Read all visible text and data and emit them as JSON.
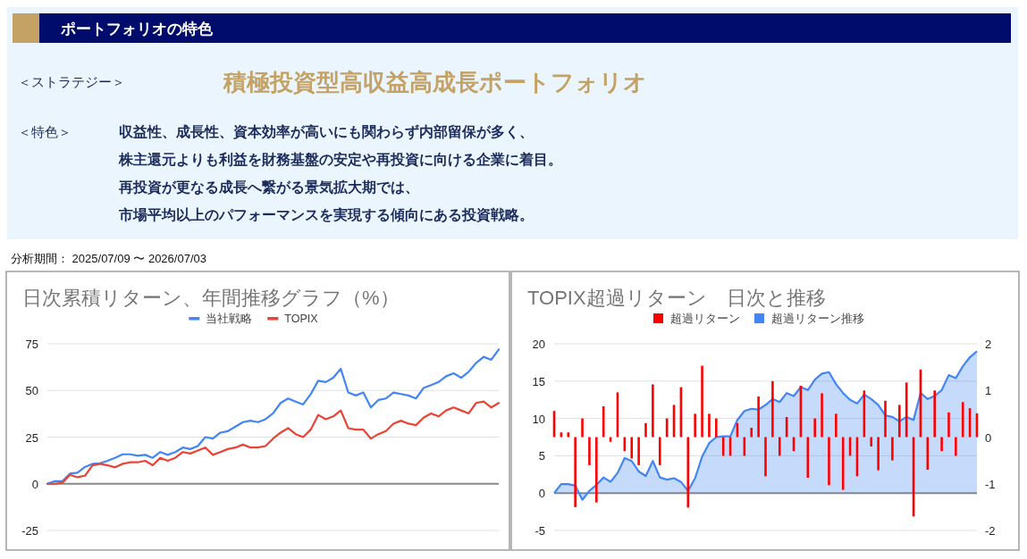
{
  "chart_data": [
    {
      "type": "other",
      "title": "ポートフォリオの特色",
      "annotations": [
        "＜ストラテジー＞",
        "積極投資型高収益高成長ポートフォリオ",
        "＜特色＞",
        "収益性、成長性、資本効率が高いにも関わらず内部留保が多く、",
        "株主還元よりも利益を財務基盤の安定や再投資に向ける企業に着目。",
        "再投資が更なる成長へ繋がる景気拡大期では、",
        "市場平均以上のパフォーマンスを実現する傾向にある投資戦略。",
        "分析期間： 2025/07/09 〜 2026/07/03"
      ]
    },
    {
      "type": "line",
      "title": "日次累積リターン、年間推移グラフ（%）",
      "categories": [
        null,
        null,
        null,
        null,
        null,
        null,
        null,
        null,
        null,
        null,
        null,
        null,
        null,
        null,
        null,
        null,
        null,
        null,
        null,
        null,
        null,
        null,
        null,
        null,
        null,
        null,
        null,
        null,
        null,
        null,
        null,
        null,
        null,
        null,
        null,
        null,
        null,
        null,
        null,
        null,
        null,
        null,
        null,
        null,
        null,
        null,
        null,
        null,
        null,
        null,
        null,
        null,
        null,
        null,
        null,
        null,
        null,
        null,
        null,
        null,
        null
      ],
      "series": [
        {
          "name": "当社戦略",
          "color": "#4285f4",
          "values": [
            0,
            1.4,
            1.4,
            5.4,
            5.9,
            9,
            10.7,
            11,
            12.3,
            13.9,
            15.8,
            15.8,
            15,
            15.5,
            13.9,
            17,
            15.5,
            17,
            19.4,
            18.6,
            20.2,
            25,
            24.2,
            27.4,
            28.2,
            30.6,
            33,
            33.8,
            33,
            34.6,
            37.7,
            43.3,
            45.7,
            44,
            42.5,
            48,
            55.2,
            54.5,
            56.8,
            61.6,
            48.9,
            47.3,
            48.9,
            40.9,
            44.9,
            45.7,
            48.9,
            48.1,
            47.3,
            45.7,
            51.3,
            52.9,
            54.5,
            57.6,
            59.2,
            56.8,
            60,
            64.8,
            68,
            66.4,
            72
          ]
        },
        {
          "name": "TOPIX",
          "color": "#ea4335",
          "values": [
            0,
            0,
            0.5,
            4.8,
            3.5,
            4.3,
            9.9,
            10.7,
            9.9,
            8.8,
            10.7,
            11.5,
            11.5,
            12.3,
            9.9,
            13.9,
            12.3,
            13.9,
            17,
            16.2,
            17.8,
            19.4,
            15.5,
            17,
            18.6,
            19.4,
            21,
            19.4,
            19.4,
            20.2,
            24.2,
            27.4,
            29.8,
            26.6,
            25,
            29,
            36.9,
            34.6,
            36.1,
            39.3,
            29.8,
            29,
            29,
            24.2,
            26.6,
            28.2,
            32.2,
            33.8,
            32.2,
            31.4,
            35.4,
            37.7,
            36.1,
            39.3,
            40.9,
            39.3,
            37.7,
            43.3,
            44.1,
            40.9,
            43.3
          ]
        }
      ],
      "ylim": [
        -25,
        75
      ],
      "yticks": [
        -25,
        0,
        25,
        50,
        75
      ],
      "grid": "y",
      "legend": "top"
    },
    {
      "type": "bar",
      "title": "TOPIX超過リターン　日次と推移",
      "categories": [
        null,
        null,
        null,
        null,
        null,
        null,
        null,
        null,
        null,
        null,
        null,
        null,
        null,
        null,
        null,
        null,
        null,
        null,
        null,
        null,
        null,
        null,
        null,
        null,
        null,
        null,
        null,
        null,
        null,
        null,
        null,
        null,
        null,
        null,
        null,
        null,
        null,
        null,
        null,
        null,
        null,
        null,
        null,
        null,
        null,
        null,
        null,
        null,
        null,
        null,
        null,
        null,
        null,
        null,
        null,
        null,
        null,
        null,
        null,
        null,
        null
      ],
      "series": [
        {
          "name": "超過リターン",
          "type": "bar",
          "axis": "y2",
          "color": "#ff0000",
          "values": [
            0.56,
            0.1,
            0.1,
            -1.5,
            0.4,
            -0.6,
            -1.4,
            0.66,
            -0.1,
            0.96,
            -0.3,
            -0.46,
            -0.6,
            0.3,
            1.13,
            -0.6,
            0.4,
            0.69,
            1.07,
            -1.51,
            0.5,
            1.53,
            0.5,
            0.4,
            -0.4,
            -0.4,
            0.3,
            -0.4,
            0.2,
            0.87,
            -0.84,
            1.2,
            -0.4,
            0.43,
            -0.3,
            1.1,
            -0.87,
            0.4,
            0.94,
            -1.03,
            0.5,
            -1.13,
            -0.4,
            -0.84,
            1.0,
            -0.2,
            -0.71,
            0.78,
            -0.5,
            0.69,
            1.17,
            -1.7,
            1.45,
            -0.7,
            1.0,
            -0.3,
            0.53,
            -0.4,
            0.75,
            0.62,
            0.51
          ]
        },
        {
          "name": "超過リターン推移",
          "type": "area",
          "color": "#4285f4",
          "values": [
            0,
            1.2,
            1.2,
            1.0,
            -0.9,
            0.3,
            1.1,
            2.1,
            1.5,
            2.7,
            4.7,
            4.3,
            2.9,
            2.3,
            4.3,
            2.1,
            1.8,
            2.0,
            1.5,
            0.3,
            2.0,
            4.9,
            6.7,
            7.5,
            7.6,
            7.6,
            9.8,
            11,
            11.3,
            11.2,
            11.8,
            12.6,
            12.2,
            13.4,
            13,
            14.2,
            13.8,
            15.2,
            16,
            16.2,
            14.6,
            13.4,
            12.5,
            12,
            13.2,
            12.6,
            11.8,
            10.4,
            10.2,
            9.6,
            10.2,
            9.8,
            13.4,
            12.6,
            13,
            13.8,
            15.8,
            15.4,
            17,
            18.2,
            19
          ]
        }
      ],
      "ylim": [
        -5,
        20
      ],
      "yticks": [
        -5,
        0,
        5,
        10,
        15,
        20
      ],
      "y2lim": [
        -2,
        2
      ],
      "y2ticks": [
        -2,
        -1,
        0,
        1,
        2
      ],
      "grid": "y",
      "legend": "top"
    }
  ]
}
